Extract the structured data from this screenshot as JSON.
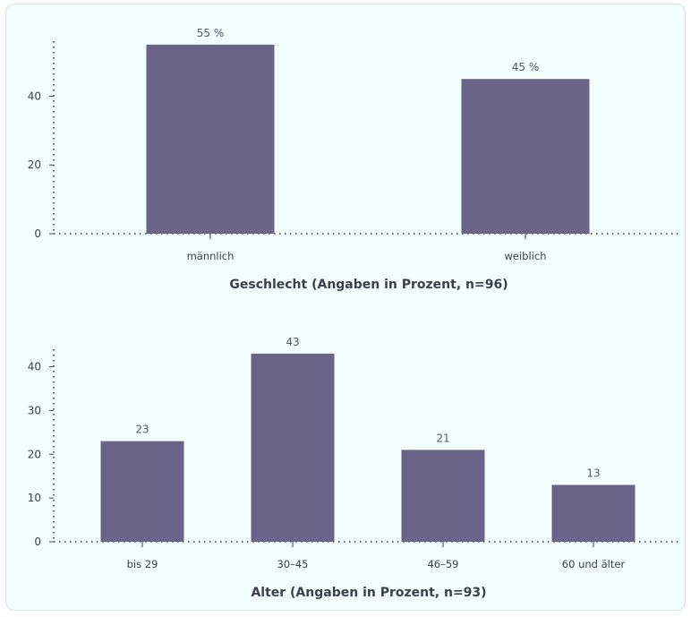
{
  "chart_data": [
    {
      "type": "bar",
      "title": "Geschlecht (Angaben in Prozent, n=96)",
      "categories": [
        "männlich",
        "weiblich"
      ],
      "values": [
        55,
        45
      ],
      "value_labels": [
        "55 %",
        "45 %"
      ],
      "yticks": [
        "0",
        "20",
        "40"
      ],
      "ylim": [
        0,
        56
      ],
      "bar_color": "#6b6489"
    },
    {
      "type": "bar",
      "title": "Alter (Angaben in Prozent, n=93)",
      "categories": [
        "bis 29",
        "30–45",
        "46–59",
        "60 und älter"
      ],
      "values": [
        23,
        43,
        21,
        13
      ],
      "value_labels": [
        "23",
        "43",
        "21",
        "13"
      ],
      "yticks": [
        "0",
        "10",
        "20",
        "30",
        "40"
      ],
      "ylim": [
        0,
        44
      ],
      "bar_color": "#6b6489"
    }
  ]
}
